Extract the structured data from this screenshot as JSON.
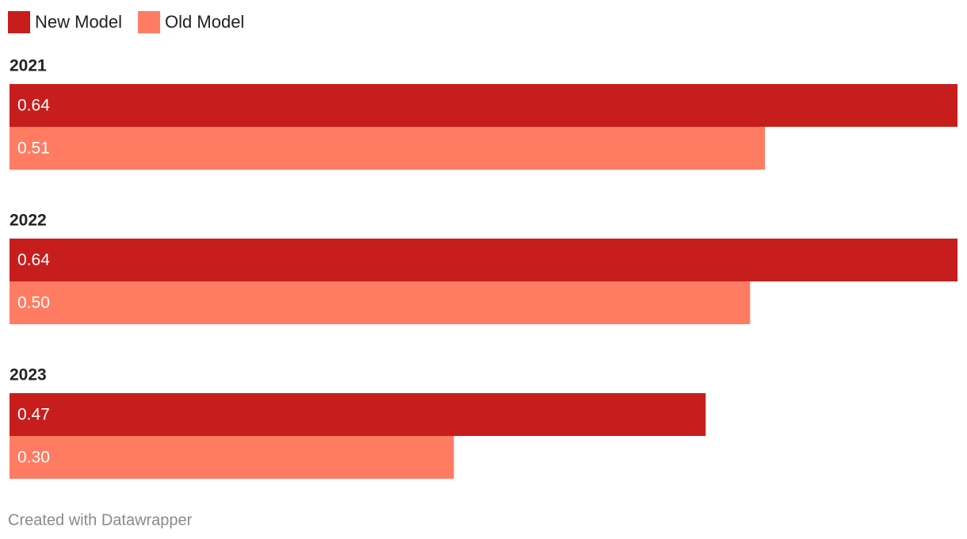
{
  "chart_data": {
    "type": "grouped-bar-horizontal",
    "categories": [
      "2021",
      "2022",
      "2023"
    ],
    "series": [
      {
        "name": "New Model",
        "color": "#c71e1d",
        "values": [
          0.64,
          0.64,
          0.47
        ],
        "value_labels": [
          "0.64",
          "0.64",
          "0.47"
        ]
      },
      {
        "name": "Old Model",
        "color": "#ff7c63",
        "values": [
          0.51,
          0.5,
          0.3
        ],
        "value_labels": [
          "0.51",
          "0.50",
          "0.30"
        ]
      }
    ],
    "xlim": [
      0,
      0.64
    ],
    "credit": "Created with Datawrapper"
  }
}
